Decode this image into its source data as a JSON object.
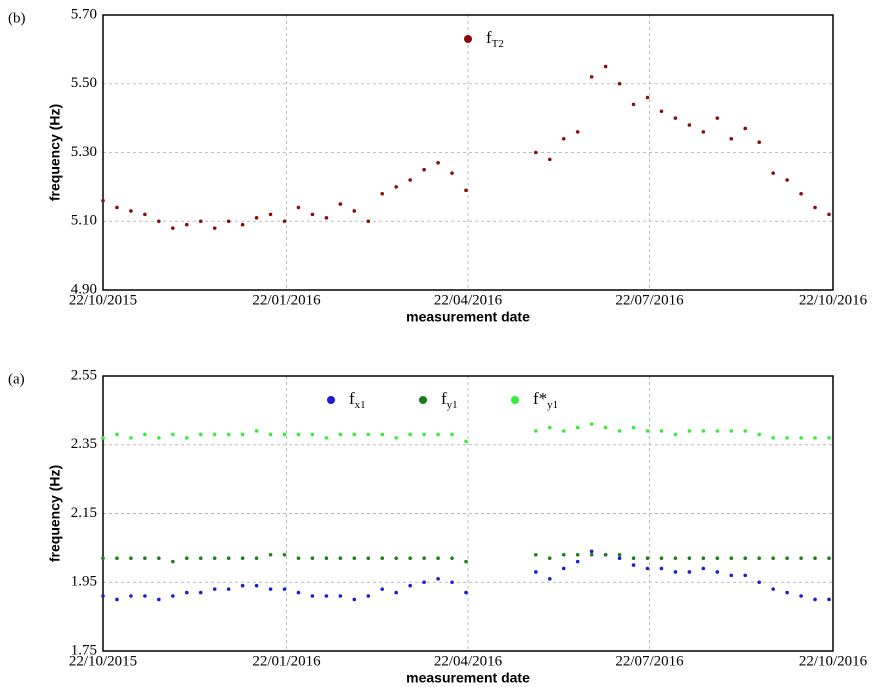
{
  "chart_data": [
    {
      "type": "scatter",
      "panel_label": "(b)",
      "x_label": "measurement date",
      "y_label": "frequency (Hz)",
      "xlim": [
        "2015-10-22",
        "2016-10-22"
      ],
      "xticks": [
        {
          "value": "2015-10-22",
          "label": "22/10/2015"
        },
        {
          "value": "2016-01-22",
          "label": "22/01/2016"
        },
        {
          "value": "2016-04-22",
          "label": "22/04/2016"
        },
        {
          "value": "2016-07-22",
          "label": "22/07/2016"
        },
        {
          "value": "2016-10-22",
          "label": "22/10/2016"
        }
      ],
      "ylim": [
        4.9,
        5.7
      ],
      "yticks": [
        {
          "value": 4.9,
          "label": "4.90"
        },
        {
          "value": 5.1,
          "label": "5.10"
        },
        {
          "value": 5.3,
          "label": "5.30"
        },
        {
          "value": 5.5,
          "label": "5.50"
        },
        {
          "value": 5.7,
          "label": "5.70"
        }
      ],
      "grid": true,
      "legend": "top",
      "x": [
        "2015-10-22",
        "2015-10-29",
        "2015-11-05",
        "2015-11-12",
        "2015-11-19",
        "2015-11-26",
        "2015-12-03",
        "2015-12-10",
        "2015-12-17",
        "2015-12-24",
        "2015-12-31",
        "2016-01-07",
        "2016-01-14",
        "2016-01-21",
        "2016-01-28",
        "2016-02-04",
        "2016-02-11",
        "2016-02-18",
        "2016-02-25",
        "2016-03-03",
        "2016-03-10",
        "2016-03-17",
        "2016-03-24",
        "2016-03-31",
        "2016-04-07",
        "2016-04-14",
        "2016-04-21",
        "2016-04-28",
        "2016-05-05",
        "2016-05-12",
        "2016-05-19",
        "2016-05-26",
        "2016-06-02",
        "2016-06-09",
        "2016-06-16",
        "2016-06-23",
        "2016-06-30",
        "2016-07-07",
        "2016-07-14",
        "2016-07-21",
        "2016-07-28",
        "2016-08-04",
        "2016-08-11",
        "2016-08-18",
        "2016-08-25",
        "2016-09-01",
        "2016-09-08",
        "2016-09-15",
        "2016-09-22",
        "2016-09-29",
        "2016-10-06",
        "2016-10-13",
        "2016-10-20"
      ],
      "series": [
        {
          "name": "fT2",
          "color": "#8b0a0a",
          "values": [
            5.16,
            5.14,
            5.13,
            5.12,
            5.1,
            5.08,
            5.09,
            5.1,
            5.08,
            5.1,
            5.09,
            5.11,
            5.12,
            5.1,
            5.14,
            5.12,
            5.11,
            5.15,
            5.13,
            5.1,
            5.18,
            5.2,
            5.22,
            5.25,
            5.27,
            5.24,
            5.19,
            null,
            null,
            null,
            null,
            5.3,
            5.28,
            5.34,
            5.36,
            5.52,
            5.55,
            5.5,
            5.44,
            5.46,
            5.42,
            5.4,
            5.38,
            5.36,
            5.4,
            5.34,
            5.37,
            5.33,
            5.24,
            5.22,
            5.18,
            5.14,
            5.12
          ]
        }
      ]
    },
    {
      "type": "scatter",
      "panel_label": "(a)",
      "x_label": "measurement date",
      "y_label": "frequency (Hz)",
      "xlim": [
        "2015-10-22",
        "2016-10-22"
      ],
      "xticks": [
        {
          "value": "2015-10-22",
          "label": "22/10/2015"
        },
        {
          "value": "2016-01-22",
          "label": "22/01/2016"
        },
        {
          "value": "2016-04-22",
          "label": "22/04/2016"
        },
        {
          "value": "2016-07-22",
          "label": "22/07/2016"
        },
        {
          "value": "2016-10-22",
          "label": "22/10/2016"
        }
      ],
      "ylim": [
        1.75,
        2.55
      ],
      "yticks": [
        {
          "value": 1.75,
          "label": "1.75"
        },
        {
          "value": 1.95,
          "label": "1.95"
        },
        {
          "value": 2.15,
          "label": "2.15"
        },
        {
          "value": 2.35,
          "label": "2.35"
        },
        {
          "value": 2.55,
          "label": "2.55"
        }
      ],
      "grid": true,
      "legend": "top",
      "x": [
        "2015-10-22",
        "2015-10-29",
        "2015-11-05",
        "2015-11-12",
        "2015-11-19",
        "2015-11-26",
        "2015-12-03",
        "2015-12-10",
        "2015-12-17",
        "2015-12-24",
        "2015-12-31",
        "2016-01-07",
        "2016-01-14",
        "2016-01-21",
        "2016-01-28",
        "2016-02-04",
        "2016-02-11",
        "2016-02-18",
        "2016-02-25",
        "2016-03-03",
        "2016-03-10",
        "2016-03-17",
        "2016-03-24",
        "2016-03-31",
        "2016-04-07",
        "2016-04-14",
        "2016-04-21",
        "2016-04-28",
        "2016-05-05",
        "2016-05-12",
        "2016-05-19",
        "2016-05-26",
        "2016-06-02",
        "2016-06-09",
        "2016-06-16",
        "2016-06-23",
        "2016-06-30",
        "2016-07-07",
        "2016-07-14",
        "2016-07-21",
        "2016-07-28",
        "2016-08-04",
        "2016-08-11",
        "2016-08-18",
        "2016-08-25",
        "2016-09-01",
        "2016-09-08",
        "2016-09-15",
        "2016-09-22",
        "2016-09-29",
        "2016-10-06",
        "2016-10-13",
        "2016-10-20"
      ],
      "series": [
        {
          "name": "fx1",
          "color": "#1c1cd8",
          "values": [
            1.91,
            1.9,
            1.91,
            1.91,
            1.9,
            1.91,
            1.92,
            1.92,
            1.93,
            1.93,
            1.94,
            1.94,
            1.93,
            1.93,
            1.92,
            1.91,
            1.91,
            1.91,
            1.9,
            1.91,
            1.93,
            1.92,
            1.94,
            1.95,
            1.96,
            1.95,
            1.92,
            null,
            null,
            null,
            null,
            1.98,
            1.96,
            1.99,
            2.01,
            2.04,
            2.03,
            2.02,
            2.0,
            1.99,
            1.99,
            1.98,
            1.98,
            1.99,
            1.98,
            1.97,
            1.97,
            1.95,
            1.93,
            1.92,
            1.91,
            1.9,
            1.9
          ]
        },
        {
          "name": "fy1",
          "color": "#1a7d1a",
          "values": [
            2.02,
            2.02,
            2.02,
            2.02,
            2.02,
            2.01,
            2.02,
            2.02,
            2.02,
            2.02,
            2.02,
            2.02,
            2.03,
            2.03,
            2.02,
            2.02,
            2.02,
            2.02,
            2.02,
            2.02,
            2.02,
            2.02,
            2.02,
            2.02,
            2.02,
            2.02,
            2.01,
            null,
            null,
            null,
            null,
            2.03,
            2.02,
            2.03,
            2.03,
            2.03,
            2.03,
            2.03,
            2.02,
            2.02,
            2.02,
            2.02,
            2.02,
            2.02,
            2.02,
            2.02,
            2.02,
            2.02,
            2.02,
            2.02,
            2.02,
            2.02,
            2.02
          ]
        },
        {
          "name": "f*y1",
          "color": "#33ee33",
          "values": [
            2.37,
            2.38,
            2.37,
            2.38,
            2.37,
            2.38,
            2.37,
            2.38,
            2.38,
            2.38,
            2.38,
            2.39,
            2.38,
            2.38,
            2.38,
            2.38,
            2.37,
            2.38,
            2.38,
            2.38,
            2.38,
            2.37,
            2.38,
            2.38,
            2.38,
            2.38,
            2.36,
            null,
            null,
            null,
            null,
            2.39,
            2.4,
            2.39,
            2.4,
            2.41,
            2.4,
            2.39,
            2.4,
            2.39,
            2.39,
            2.38,
            2.39,
            2.39,
            2.39,
            2.39,
            2.39,
            2.38,
            2.37,
            2.37,
            2.37,
            2.37,
            2.37
          ]
        }
      ]
    }
  ]
}
